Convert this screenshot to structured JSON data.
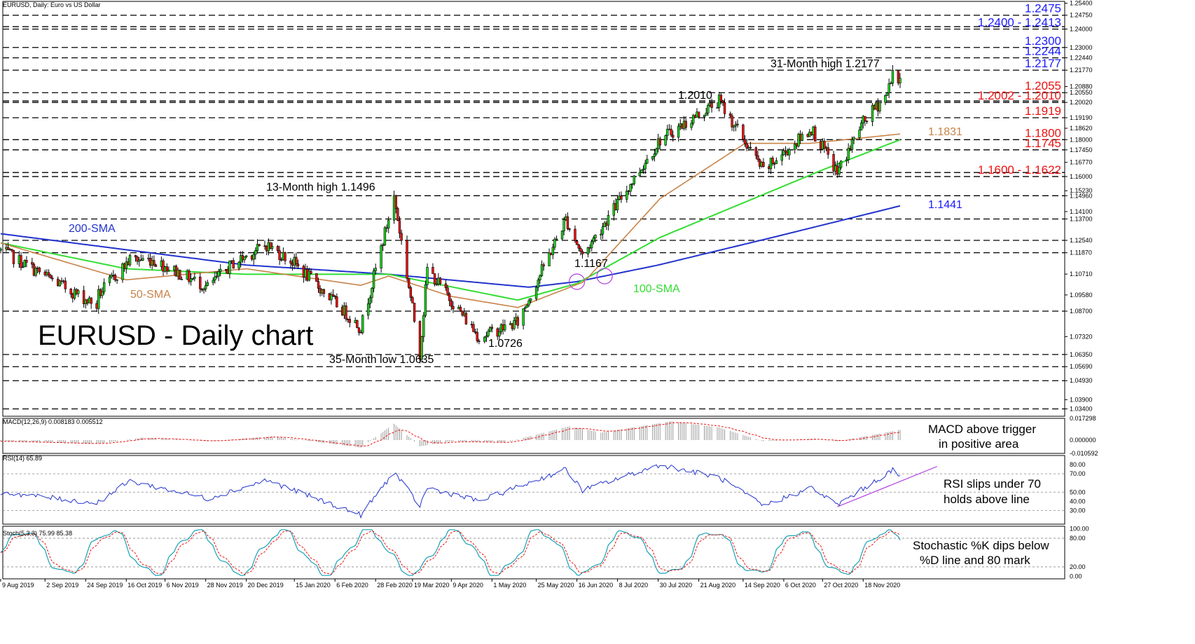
{
  "colors": {
    "blue": "#1a1aff",
    "red": "#ee1111",
    "tan": "#c8844a",
    "green": "#33dd33",
    "sma200": "#2233cc",
    "line": "#000000",
    "macd_hist": "#9a9a9a",
    "macd_signal": "#ee1111",
    "rsi": "#2233cc",
    "stoch_k": "#19a3b5",
    "stoch_d": "#ee1111",
    "trend": "#b64be0",
    "circle": "#b64be0"
  },
  "chart_data": {
    "type": "line",
    "title": "EURUSD, Daily:  Euro vs US Dollar",
    "watermark": "EURUSD - Daily chart",
    "x_labels": [
      "9 Aug 2019",
      "2 Sep 2019",
      "24 Sep 2019",
      "16 Oct 2019",
      "6 Nov 2019",
      "28 Nov 2019",
      "20 Dec 2019",
      "15 Jan 2020",
      "6 Feb 2020",
      "28 Feb 2020",
      "19 Mar 2020",
      "9 Apr 2020",
      "1 May 2020",
      "25 May 2020",
      "16 Jun 2020",
      "8 Jul 2020",
      "30 Jul 2020",
      "21 Aug 2020",
      "14 Sep 2020",
      "6 Oct 2020",
      "27 Oct 2020",
      "18 Nov 2020"
    ],
    "y_ticks": [
      "1.25400",
      "1.24750",
      "1.24000",
      "1.23000",
      "1.22440",
      "1.21770",
      "1.20880",
      "1.20550",
      "1.20020",
      "1.19190",
      "1.18620",
      "1.18000",
      "1.17450",
      "1.16770",
      "1.16000",
      "1.15230",
      "1.14960",
      "1.14100",
      "1.13700",
      "1.12540",
      "1.11870",
      "1.10710",
      "1.09580",
      "1.08700",
      "1.07320",
      "1.06350",
      "1.05690",
      "1.04930",
      "1.03900",
      "1.03400"
    ],
    "ylim": [
      1.03,
      1.255
    ],
    "price_anchors": [
      {
        "date": "9 Aug 2019",
        "close": 1.12
      },
      {
        "date": "30 Sep 2019",
        "close": 1.09
      },
      {
        "date": "1 Oct 2019",
        "close": 1.096
      },
      {
        "date": "18 Oct 2019",
        "close": 1.115
      },
      {
        "date": "30 Oct 2019",
        "close": 1.115
      },
      {
        "date": "29 Nov 2019",
        "close": 1.1
      },
      {
        "date": "13 Dec 2019",
        "close": 1.113
      },
      {
        "date": "31 Dec 2019",
        "close": 1.123
      },
      {
        "date": "15 Jan 2020",
        "close": 1.113
      },
      {
        "date": "20 Feb 2020",
        "close": 1.078
      },
      {
        "date": "9 Mar 2020",
        "close": 1.149
      },
      {
        "date": "23 Mar 2020",
        "close": 1.064
      },
      {
        "date": "27 Mar 2020",
        "close": 1.11
      },
      {
        "date": "24 Apr 2020",
        "close": 1.073
      },
      {
        "date": "15 May 2020",
        "close": 1.081
      },
      {
        "date": "10 Jun 2020",
        "close": 1.137
      },
      {
        "date": "19 Jun 2020",
        "close": 1.117
      },
      {
        "date": "31 Jul 2020",
        "close": 1.18
      },
      {
        "date": "1 Sep 2020",
        "close": 1.201
      },
      {
        "date": "25 Sep 2020",
        "close": 1.163
      },
      {
        "date": "21 Oct 2020",
        "close": 1.186
      },
      {
        "date": "4 Nov 2020",
        "close": 1.162
      },
      {
        "date": "17 Nov 2020",
        "close": 1.188
      },
      {
        "date": "1 Dec 2020",
        "close": 1.205
      },
      {
        "date": "4 Dec 2020",
        "close": 1.2177
      },
      {
        "date": "8 Dec 2020",
        "close": 1.21
      }
    ],
    "sma200_anchors": [
      {
        "date": "9 Aug 2019",
        "value": 1.129
      },
      {
        "date": "20 Dec 2019",
        "value": 1.112
      },
      {
        "date": "6 Mar 2020",
        "value": 1.107
      },
      {
        "date": "21 May 2020",
        "value": 1.1
      },
      {
        "date": "16 Jun 2020",
        "value": 1.103
      },
      {
        "date": "30 Jul 2020",
        "value": 1.112
      },
      {
        "date": "30 Sep 2020",
        "value": 1.127
      },
      {
        "date": "8 Dec 2020",
        "value": 1.1441
      }
    ],
    "sma50_anchors": [
      {
        "date": "9 Aug 2019",
        "value": 1.124
      },
      {
        "date": "16 Oct 2019",
        "value": 1.104
      },
      {
        "date": "20 Dec 2019",
        "value": 1.11
      },
      {
        "date": "20 Feb 2020",
        "value": 1.101
      },
      {
        "date": "6 Mar 2020",
        "value": 1.106
      },
      {
        "date": "9 Apr 2020",
        "value": 1.095
      },
      {
        "date": "15 May 2020",
        "value": 1.089
      },
      {
        "date": "20 Jun 2020",
        "value": 1.103
      },
      {
        "date": "31 Jul 2020",
        "value": 1.148
      },
      {
        "date": "15 Sep 2020",
        "value": 1.178
      },
      {
        "date": "20 Oct 2020",
        "value": 1.178
      },
      {
        "date": "8 Dec 2020",
        "value": 1.1831
      }
    ],
    "sma100_anchors": [
      {
        "date": "9 Aug 2019",
        "value": 1.124
      },
      {
        "date": "16 Oct 2019",
        "value": 1.11
      },
      {
        "date": "20 Dec 2019",
        "value": 1.107
      },
      {
        "date": "6 Mar 2020",
        "value": 1.107
      },
      {
        "date": "15 May 2020",
        "value": 1.093
      },
      {
        "date": "16 Jun 2020",
        "value": 1.102
      },
      {
        "date": "31 Jul 2020",
        "value": 1.127
      },
      {
        "date": "28 Oct 2020",
        "value": 1.164
      },
      {
        "date": "8 Dec 2020",
        "value": 1.18
      }
    ],
    "levels": [
      {
        "value": 1.2475,
        "label": "1.2475",
        "color": "blue"
      },
      {
        "value": 1.2413,
        "color": "blue"
      },
      {
        "value": 1.24,
        "label": "1.2400 - 1.2413",
        "color": "blue"
      },
      {
        "value": 1.23,
        "label": "1.2300",
        "color": "blue"
      },
      {
        "value": 1.2244,
        "label": "1.2244",
        "color": "blue"
      },
      {
        "value": 1.2177,
        "label": "1.2177",
        "color": "blue"
      },
      {
        "value": 1.2055,
        "label": "1.2055",
        "color": "red"
      },
      {
        "value": 1.201,
        "color": "red"
      },
      {
        "value": 1.2002,
        "label": "1.2002 - 1.2010",
        "color": "red"
      },
      {
        "value": 1.1919,
        "label": "1.1919",
        "color": "red"
      },
      {
        "value": 1.18,
        "label": "1.1800",
        "color": "red"
      },
      {
        "value": 1.1745,
        "label": "1.1745",
        "color": "red"
      },
      {
        "value": 1.1622,
        "color": "red"
      },
      {
        "value": 1.16,
        "label": "1.1600 - 1.1622",
        "color": "red"
      },
      {
        "value": 1.1496
      },
      {
        "value": 1.137
      },
      {
        "value": 1.1254
      },
      {
        "value": 1.1187
      },
      {
        "value": 1.087
      },
      {
        "value": 1.0635
      },
      {
        "value": 1.0569
      },
      {
        "value": 1.0493
      },
      {
        "value": 1.034
      }
    ],
    "indicator_labels": {
      "sma200": "200-SMA",
      "sma50": "50-SMA",
      "sma100": "100-SMA",
      "sma50_value": "1.1831",
      "sma200_value": "1.1441"
    },
    "annotations": [
      {
        "id": "high13",
        "text": "13-Month high 1.1496"
      },
      {
        "id": "low35",
        "text": "35-Month low 1.0635"
      },
      {
        "id": "low1072",
        "text": "1.0726"
      },
      {
        "id": "low1116",
        "text": "1.1167"
      },
      {
        "id": "high1201",
        "text": "1.2010"
      },
      {
        "id": "high31",
        "text": "31-Month high 1.2177"
      }
    ],
    "crossovers": [
      {
        "date": "16 Jun 2020",
        "value": 1.103
      },
      {
        "date": "1 Jul 2020",
        "value": 1.106
      }
    ],
    "macd": {
      "title": "MACD(12,26,9) 0.008183 0.005512",
      "y_ticks": [
        "0.017298",
        "0.000000",
        "-0.010592"
      ],
      "ylim": [
        -0.0106,
        0.0173
      ],
      "hist_anchors": [
        {
          "date": "9 Aug 2019",
          "value": -0.001
        },
        {
          "date": "30 Sep 2019",
          "value": -0.003
        },
        {
          "date": "25 Oct 2019",
          "value": 0.002
        },
        {
          "date": "29 Nov 2019",
          "value": -0.001
        },
        {
          "date": "3 Jan 2020",
          "value": 0.003
        },
        {
          "date": "20 Feb 2020",
          "value": -0.006
        },
        {
          "date": "9 Mar 2020",
          "value": 0.013
        },
        {
          "date": "23 Mar 2020",
          "value": -0.005
        },
        {
          "date": "9 Apr 2020",
          "value": -0.001
        },
        {
          "date": "8 May 2020",
          "value": -0.002
        },
        {
          "date": "12 Jun 2020",
          "value": 0.011
        },
        {
          "date": "29 Jun 2020",
          "value": 0.006
        },
        {
          "date": "6 Aug 2020",
          "value": 0.015
        },
        {
          "date": "1 Sep 2020",
          "value": 0.01
        },
        {
          "date": "25 Sep 2020",
          "value": -0.001
        },
        {
          "date": "21 Oct 2020",
          "value": 0.001
        },
        {
          "date": "4 Nov 2020",
          "value": -0.001
        },
        {
          "date": "8 Dec 2020",
          "value": 0.008183
        }
      ],
      "note": [
        "MACD above trigger",
        "in positive area"
      ]
    },
    "rsi": {
      "title": "RSI(14) 65.89",
      "y_ticks": [
        "80.00",
        "70.00",
        "50.00",
        "40.00",
        "30.00"
      ],
      "ylim": [
        15,
        90
      ],
      "anchors": [
        {
          "date": "9 Aug 2019",
          "value": 50
        },
        {
          "date": "30 Sep 2019",
          "value": 38
        },
        {
          "date": "18 Oct 2019",
          "value": 62
        },
        {
          "date": "29 Nov 2019",
          "value": 43
        },
        {
          "date": "31 Dec 2019",
          "value": 63
        },
        {
          "date": "20 Feb 2020",
          "value": 25
        },
        {
          "date": "9 Mar 2020",
          "value": 72
        },
        {
          "date": "23 Mar 2020",
          "value": 35
        },
        {
          "date": "27 Mar 2020",
          "value": 55
        },
        {
          "date": "24 Apr 2020",
          "value": 40
        },
        {
          "date": "10 Jun 2020",
          "value": 75
        },
        {
          "date": "19 Jun 2020",
          "value": 52
        },
        {
          "date": "31 Jul 2020",
          "value": 80
        },
        {
          "date": "1 Sep 2020",
          "value": 66
        },
        {
          "date": "25 Sep 2020",
          "value": 35
        },
        {
          "date": "21 Oct 2020",
          "value": 55
        },
        {
          "date": "4 Nov 2020",
          "value": 36
        },
        {
          "date": "4 Dec 2020",
          "value": 74
        },
        {
          "date": "8 Dec 2020",
          "value": 65.89
        }
      ],
      "trendline": [
        {
          "date": "4 Nov 2020",
          "value": 34
        },
        {
          "date": "28 Dec 2020",
          "value": 78
        }
      ],
      "note": [
        "RSI slips under 70",
        "holds above line"
      ]
    },
    "stoch": {
      "title": "Stoch(5,3,3) 75.99 85.38",
      "y_ticks": [
        "100.00",
        "80.00",
        "20.00",
        "0.00"
      ],
      "ylim": [
        0,
        100
      ],
      "k_last": 75.99,
      "d_last": 85.38,
      "note": [
        "Stochastic %K dips below",
        "%D line and 80 mark"
      ]
    }
  }
}
